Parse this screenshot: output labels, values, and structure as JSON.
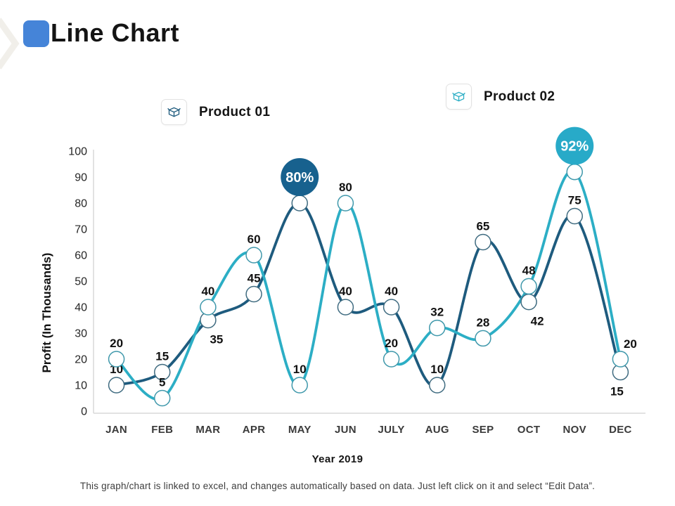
{
  "slide": {
    "title": "Line Chart",
    "accent_color": "#4584d8",
    "footer": "This graph/chart is linked to excel, and changes automatically based on data. Just left click on it and select “Edit Data”."
  },
  "legends": [
    {
      "label": "Product 01",
      "color": "#1e5b7e",
      "icon": "open-box-icon"
    },
    {
      "label": "Product 02",
      "color": "#2caec5",
      "icon": "open-box-icon"
    }
  ],
  "chart_data": {
    "type": "line",
    "title": "",
    "xlabel": "Year 2019",
    "ylabel": "Profit (In Thousands)",
    "categories": [
      "JAN",
      "FEB",
      "MAR",
      "APR",
      "MAY",
      "JUN",
      "JULY",
      "AUG",
      "SEP",
      "OCT",
      "NOV",
      "DEC"
    ],
    "series": [
      {
        "name": "Product 01",
        "color": "#1e5b7e",
        "marker_stroke": "#3f6b80",
        "values": [
          10,
          15,
          35,
          45,
          80,
          40,
          40,
          10,
          65,
          42,
          75,
          15
        ],
        "label_placement": [
          "above",
          "above",
          "below",
          "above",
          "none",
          "above",
          "above",
          "above",
          "above",
          "below",
          "above",
          "below-left"
        ],
        "callout": {
          "index": 4,
          "text": "80%",
          "color": "#17618e"
        }
      },
      {
        "name": "Product 02",
        "color": "#2caec5",
        "marker_stroke": "#3f98ab",
        "values": [
          20,
          5,
          40,
          60,
          10,
          80,
          20,
          32,
          28,
          48,
          92,
          20
        ],
        "label_placement": [
          "above",
          "above",
          "above",
          "above",
          "above",
          "above",
          "above",
          "above",
          "above",
          "above",
          "none",
          "above-right"
        ],
        "callout": {
          "index": 10,
          "text": "92%",
          "color": "#28aac8"
        }
      }
    ],
    "ylim": [
      0,
      100
    ],
    "ytick_step": 10,
    "grid": false,
    "legend_position": "top",
    "axis_color": "#d9d9d9",
    "marker_fill": "#ffffff"
  }
}
